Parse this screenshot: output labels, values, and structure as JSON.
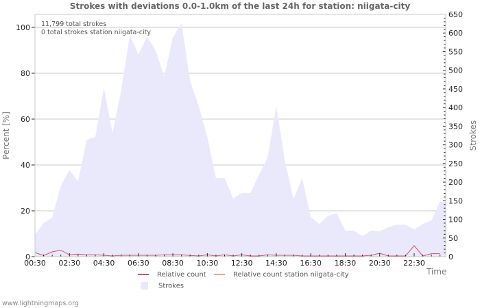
{
  "title": "Strokes with deviations 0.0-1.0km of the last 24h for station: niigata-city",
  "info": {
    "total_strokes": "11,799 total strokes",
    "station_strokes": "0 total strokes station niigata-city"
  },
  "axes": {
    "left_title": "Percent   [%]",
    "right_title": "Strokes",
    "x_title": "Time",
    "left_ticks": [
      "0",
      "20",
      "40",
      "60",
      "80",
      "100"
    ],
    "right_ticks": [
      "0",
      "50",
      "100",
      "150",
      "200",
      "250",
      "300",
      "350",
      "400",
      "450",
      "500",
      "550",
      "600",
      "650"
    ],
    "x_ticks": [
      "00:30",
      "02:30",
      "04:30",
      "06:30",
      "08:30",
      "10:30",
      "12:30",
      "14:30",
      "16:30",
      "18:30",
      "20:30",
      "22:30"
    ]
  },
  "legend": {
    "relative_count": "Relative count",
    "relative_count_station": "Relative count station niigata-city",
    "strokes": "Strokes"
  },
  "colors": {
    "strokes_fill": "#e9e9fb",
    "relative_count": "#d0506a",
    "relative_count_station": "#f4a0a0",
    "grid": "#c8c8c8"
  },
  "footer": "www.lightningmaps.org",
  "chart_data": {
    "type": "area",
    "title": "Strokes with deviations 0.0-1.0km of the last 24h for station: niigata-city",
    "xlabel": "Time",
    "ylabel": "Percent [%]",
    "y2label": "Strokes",
    "ylim": [
      0,
      105
    ],
    "y2lim": [
      0,
      650
    ],
    "grid": true,
    "legend_position": "bottom",
    "x": [
      "00:30",
      "01:00",
      "01:30",
      "02:00",
      "02:30",
      "03:00",
      "03:30",
      "04:00",
      "04:30",
      "05:00",
      "05:30",
      "06:00",
      "06:30",
      "07:00",
      "07:30",
      "08:00",
      "08:30",
      "09:00",
      "09:30",
      "10:00",
      "10:30",
      "11:00",
      "11:30",
      "12:00",
      "12:30",
      "13:00",
      "13:30",
      "14:00",
      "14:30",
      "15:00",
      "15:30",
      "16:00",
      "16:30",
      "17:00",
      "17:30",
      "18:00",
      "18:30",
      "19:00",
      "19:30",
      "20:00",
      "20:30",
      "21:00",
      "21:30",
      "22:00",
      "22:30",
      "23:00",
      "23:30",
      "24:00"
    ],
    "series": [
      {
        "name": "Strokes",
        "axis": "right",
        "type": "area",
        "values": [
          59,
          90,
          105,
          190,
          233,
          202,
          314,
          321,
          453,
          332,
          446,
          595,
          542,
          591,
          553,
          483,
          588,
          626,
          472,
          404,
          321,
          211,
          211,
          156,
          171,
          171,
          220,
          266,
          404,
          257,
          154,
          211,
          106,
          88,
          110,
          116,
          70,
          70,
          55,
          70,
          68,
          79,
          86,
          86,
          73,
          88,
          97,
          147
        ]
      },
      {
        "name": "Relative count",
        "axis": "left",
        "type": "line",
        "values": [
          1.5,
          0.2,
          1.8,
          2.5,
          0.5,
          0.8,
          0.5,
          0.5,
          0.3,
          0.0,
          0.3,
          0.3,
          0.3,
          0.3,
          0.3,
          0.5,
          0.5,
          0.5,
          0.2,
          0.0,
          0.5,
          0.0,
          0.5,
          0.0,
          0.5,
          0.0,
          0.0,
          0.5,
          0.3,
          0.3,
          0.3,
          0.0,
          0.0,
          0.0,
          0.0,
          0.0,
          0.0,
          0.0,
          0.0,
          0.3,
          1.2,
          0.0,
          0.0,
          0.0,
          4.5,
          0.0,
          1.0,
          1.0
        ]
      },
      {
        "name": "Relative count station niigata-city",
        "axis": "left",
        "type": "line",
        "values": [
          0,
          0,
          0,
          0,
          0,
          0,
          0,
          0,
          0,
          0,
          0,
          0,
          0,
          0,
          0,
          0,
          0,
          0,
          0,
          0,
          0,
          0,
          0,
          0,
          0,
          0,
          0,
          0,
          0,
          0,
          0,
          0,
          0,
          0,
          0,
          0,
          0,
          0,
          0,
          0,
          0,
          0,
          0,
          0,
          0,
          0,
          0,
          0
        ]
      }
    ]
  }
}
